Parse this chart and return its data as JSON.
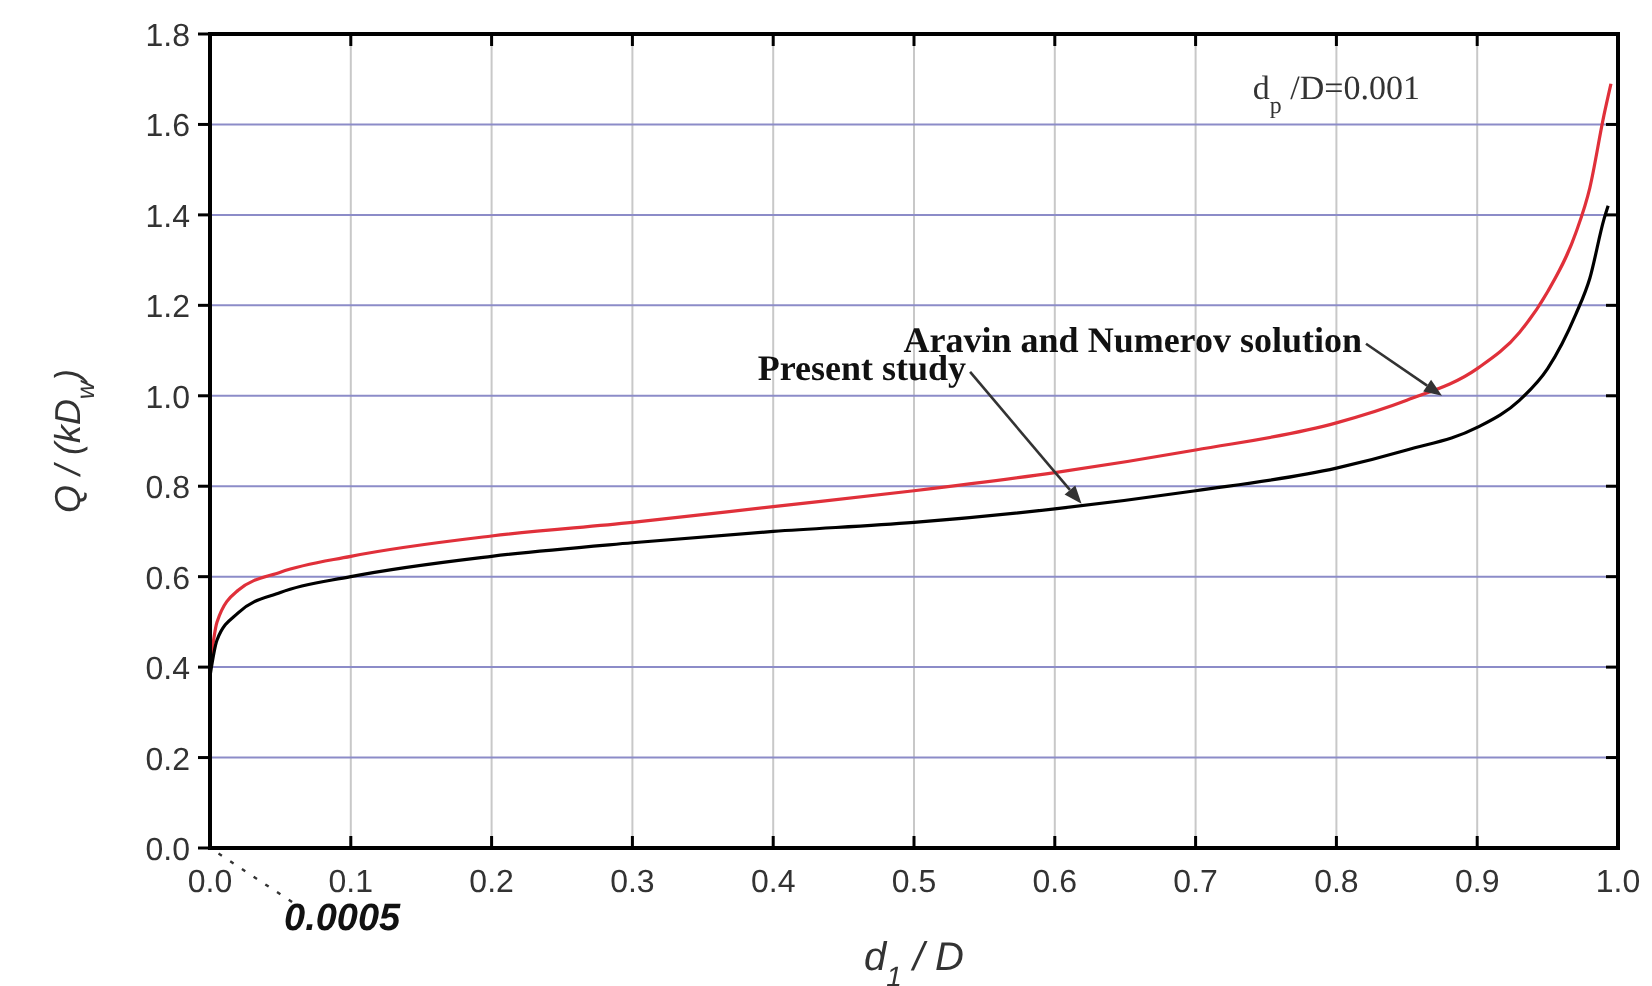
{
  "chart_data": {
    "type": "line",
    "xlabel": "d$_{1}$ / D",
    "ylabel": "Q / (kD$_{w}$)",
    "xlim": [
      0,
      1.0
    ],
    "ylim": [
      0,
      1.8
    ],
    "xticks": [
      {
        "value": 0,
        "label": "0.0"
      },
      0.1,
      0.2,
      0.3,
      0.4,
      0.5,
      0.6,
      0.7,
      0.8,
      0.9,
      {
        "value": 1,
        "label": "1.0"
      }
    ],
    "yticks": [
      {
        "value": 0,
        "label": "0.0"
      },
      0.2,
      0.4,
      0.6,
      0.8,
      {
        "value": 1,
        "label": "1.0"
      },
      1.2,
      1.4,
      1.6,
      1.8
    ],
    "grid": true,
    "line_style": "solid",
    "marker": "none",
    "series": [
      {
        "color": "#e0303a",
        "x": [
          0,
          0.005,
          0.02,
          0.05,
          0.1,
          0.2,
          0.3,
          0.4,
          0.5,
          0.6,
          0.7,
          0.8,
          0.85,
          0.9,
          0.93,
          0.95,
          0.97,
          0.98,
          0.99,
          0.995
        ],
        "values": [
          0.4,
          0.5,
          0.57,
          0.61,
          0.645,
          0.69,
          0.72,
          0.755,
          0.79,
          0.83,
          0.88,
          0.94,
          0.99,
          1.06,
          1.14,
          1.23,
          1.36,
          1.46,
          1.62,
          1.69
        ]
      },
      {
        "color": "#000000",
        "x": [
          0,
          0.005,
          0.02,
          0.05,
          0.1,
          0.2,
          0.3,
          0.4,
          0.5,
          0.6,
          0.7,
          0.8,
          0.85,
          0.9,
          0.93,
          0.95,
          0.97,
          0.98,
          0.99,
          0.993
        ],
        "values": [
          0.38,
          0.46,
          0.52,
          0.565,
          0.6,
          0.645,
          0.675,
          0.7,
          0.72,
          0.75,
          0.79,
          0.84,
          0.88,
          0.93,
          0.99,
          1.06,
          1.18,
          1.26,
          1.39,
          1.42
        ]
      }
    ],
    "annotations": [
      {
        "text": "Aravin and Numerov solution",
        "x": 0.875,
        "y": 1.0
      },
      "Present study",
      "0.0005",
      "d$_{p}$ /D=0.001"
    ]
  }
}
